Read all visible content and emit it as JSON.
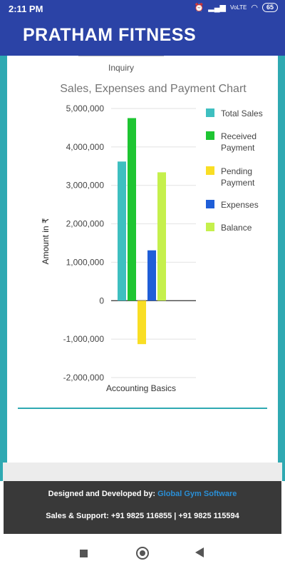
{
  "status": {
    "time": "2:11 PM",
    "network": "VoLTE",
    "battery": "65"
  },
  "app": {
    "title": "PRATHAM FITNESS"
  },
  "previous_chart_label": "Inquiry",
  "chart_data": {
    "type": "bar",
    "title": "Sales, Expenses and Payment Chart",
    "ylabel": "Amount in ₹",
    "categories": [
      "Accounting Basics"
    ],
    "ylim": [
      -2000000,
      5000000
    ],
    "yticks": [
      5000000,
      4000000,
      3000000,
      2000000,
      1000000,
      0,
      -1000000,
      -2000000
    ],
    "ytick_labels": [
      "5,000,000",
      "4,000,000",
      "3,000,000",
      "2,000,000",
      "1,000,000",
      "0",
      "-1,000,000",
      "-2,000,000"
    ],
    "legend_position": "right",
    "series": [
      {
        "name": "Total Sales",
        "color": "#3ebfc0",
        "values": [
          3620000
        ]
      },
      {
        "name": "Received Payment",
        "color": "#1ec532",
        "values": [
          4750000
        ]
      },
      {
        "name": "Pending Payment",
        "color": "#f9de24",
        "values": [
          -1130000
        ]
      },
      {
        "name": "Expenses",
        "color": "#1f5ed8",
        "values": [
          1310000
        ]
      },
      {
        "name": "Balance",
        "color": "#c5f04c",
        "values": [
          3340000
        ]
      }
    ]
  },
  "footer": {
    "designed_by_prefix": "Designed and Developed by:",
    "designed_by_link": "Global Gym Software",
    "support": "Sales & Support: +91 9825 116855 | +91 9825 115594"
  }
}
